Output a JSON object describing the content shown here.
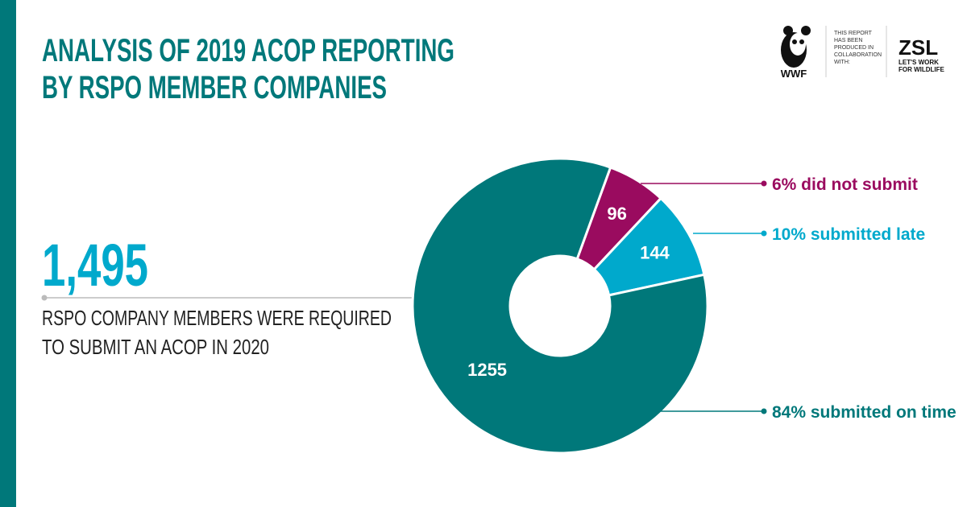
{
  "chart_data": {
    "type": "pie",
    "title": [
      "ANALYSIS OF 2019 ACOP REPORTING",
      "BY RSPO MEMBER COMPANIES"
    ],
    "headline": "1,495",
    "subtitle": [
      "RSPO COMPANY MEMBERS WERE REQUIRED",
      "TO SUBMIT AN ACOP IN 2020"
    ],
    "donut": true,
    "categories": [
      "6% did not submit",
      "10% submitted late",
      "84% submitted on time"
    ],
    "values": [
      96,
      144,
      1255
    ],
    "colors": [
      "#9a0b5f",
      "#00a9cc",
      "#00787a"
    ],
    "logos": {
      "wwf": "WWF",
      "note": [
        "THIS REPORT",
        "HAS BEEN",
        "PRODUCED IN",
        "COLLABORATION",
        "WITH:"
      ],
      "zsl": "ZSL",
      "zsl_tagline": [
        "LET'S WORK",
        "FOR WILDLIFE"
      ]
    }
  }
}
